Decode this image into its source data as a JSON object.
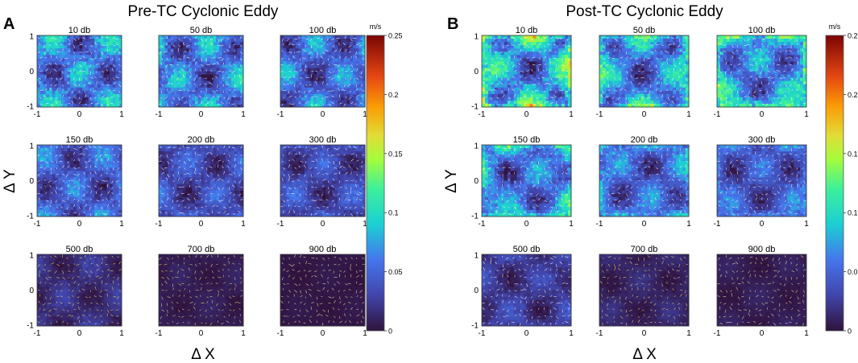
{
  "chart_data": [
    {
      "type": "heatmap",
      "panel_label": "A",
      "title": "Pre-TC Cyclonic Eddy",
      "xlabel": "Δ X",
      "ylabel": "Δ Y",
      "xlim": [
        -1,
        1
      ],
      "ylim": [
        -1,
        1
      ],
      "x_ticks": [
        "-1",
        "0",
        "1"
      ],
      "y_ticks": [
        "1",
        "0",
        "-1"
      ],
      "subplots": [
        {
          "title": "10 db",
          "mean_speed": 0.1,
          "edge_boost": 0.01,
          "vector_color": "#ffffff"
        },
        {
          "title": "50 db",
          "mean_speed": 0.095,
          "edge_boost": 0.015,
          "vector_color": "#ffffff"
        },
        {
          "title": "100 db",
          "mean_speed": 0.085,
          "edge_boost": 0.01,
          "vector_color": "#ffffff"
        },
        {
          "title": "150 db",
          "mean_speed": 0.075,
          "edge_boost": 0.008,
          "vector_color": "#ffffff"
        },
        {
          "title": "200 db",
          "mean_speed": 0.06,
          "edge_boost": 0.005,
          "vector_color": "#ffffff"
        },
        {
          "title": "300 db",
          "mean_speed": 0.055,
          "edge_boost": 0.005,
          "vector_color": "#ffffff"
        },
        {
          "title": "500 db",
          "mean_speed": 0.03,
          "edge_boost": 0.0,
          "vector_color": "#f0e07a"
        },
        {
          "title": "700 db",
          "mean_speed": 0.012,
          "edge_boost": 0.0,
          "vector_color": "#f0e07a"
        },
        {
          "title": "900 db",
          "mean_speed": 0.006,
          "edge_boost": 0.0,
          "vector_color": "#f7e9a8"
        }
      ]
    },
    {
      "type": "heatmap",
      "panel_label": "B",
      "title": "Post-TC Cyclonic Eddy",
      "xlabel": "Δ X",
      "ylabel": "Δ Y",
      "xlim": [
        -1,
        1
      ],
      "ylim": [
        -1,
        1
      ],
      "x_ticks": [
        "-1",
        "0",
        "1"
      ],
      "y_ticks": [
        "1",
        "0",
        "-1"
      ],
      "subplots": [
        {
          "title": "10 db",
          "mean_speed": 0.11,
          "edge_boost": 0.06,
          "vector_color": "#ffffff"
        },
        {
          "title": "50 db",
          "mean_speed": 0.095,
          "edge_boost": 0.05,
          "vector_color": "#ffffff"
        },
        {
          "title": "100 db",
          "mean_speed": 0.095,
          "edge_boost": 0.055,
          "vector_color": "#ffffff"
        },
        {
          "title": "150 db",
          "mean_speed": 0.085,
          "edge_boost": 0.045,
          "vector_color": "#ffffff"
        },
        {
          "title": "200 db",
          "mean_speed": 0.075,
          "edge_boost": 0.03,
          "vector_color": "#ffffff"
        },
        {
          "title": "300 db",
          "mean_speed": 0.065,
          "edge_boost": 0.02,
          "vector_color": "#ffffff"
        },
        {
          "title": "500 db",
          "mean_speed": 0.04,
          "edge_boost": 0.005,
          "vector_color": "#ffffff"
        },
        {
          "title": "700 db",
          "mean_speed": 0.02,
          "edge_boost": 0.0,
          "vector_color": "#f0e07a"
        },
        {
          "title": "900 db",
          "mean_speed": 0.012,
          "edge_boost": 0.0,
          "vector_color": "#f7e9a8"
        }
      ]
    }
  ],
  "colorbar": {
    "unit": "m/s",
    "min": 0,
    "max": 0.25,
    "ticks": [
      {
        "value": 0.25,
        "label": "0.25"
      },
      {
        "value": 0.2,
        "label": "0.2"
      },
      {
        "value": 0.15,
        "label": "0.15"
      },
      {
        "value": 0.1,
        "label": "0.1"
      },
      {
        "value": 0.05,
        "label": "0.05"
      },
      {
        "value": 0,
        "label": "0"
      }
    ]
  }
}
